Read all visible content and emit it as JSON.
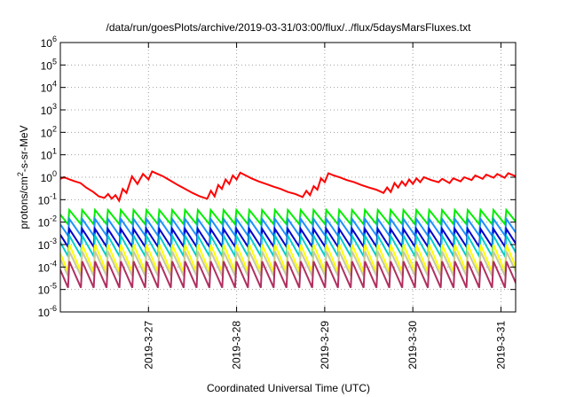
{
  "chart_data": {
    "type": "line",
    "title": "/data/run/goesPlots/archive/2019-03-31/03:00/flux/../flux/5daysMarsFluxes.txt",
    "xlabel": "Coordinated Universal Time (UTC)",
    "ylabel": "protons/cm²-s-sr-MeV",
    "ylabel_parts": {
      "base": "protons/cm",
      "sup": "2",
      "rest": "-s-sr-MeV"
    },
    "yscale": "log",
    "ylim": [
      1e-06,
      1000000.0
    ],
    "xlim": [
      "2019-03-26 00:00",
      "2019-03-31 04:00"
    ],
    "grid": true,
    "yticks": [
      {
        "base": "10",
        "exp": "6",
        "value": 1000000.0
      },
      {
        "base": "10",
        "exp": "5",
        "value": 100000.0
      },
      {
        "base": "10",
        "exp": "4",
        "value": 10000.0
      },
      {
        "base": "10",
        "exp": "3",
        "value": 1000.0
      },
      {
        "base": "10",
        "exp": "2",
        "value": 100.0
      },
      {
        "base": "10",
        "exp": "1",
        "value": 10.0
      },
      {
        "base": "10",
        "exp": "0",
        "value": 1.0
      },
      {
        "base": "10",
        "exp": "-1",
        "value": 0.1
      },
      {
        "base": "10",
        "exp": "-2",
        "value": 0.01
      },
      {
        "base": "10",
        "exp": "-3",
        "value": 0.001
      },
      {
        "base": "10",
        "exp": "-4",
        "value": 0.0001
      },
      {
        "base": "10",
        "exp": "-5",
        "value": 1e-05
      },
      {
        "base": "10",
        "exp": "-6",
        "value": 1e-06
      }
    ],
    "xticks": [
      {
        "label": "2019-3-27",
        "value": "2019-03-27 00:00"
      },
      {
        "label": "2019-3-28",
        "value": "2019-03-28 00:00"
      },
      {
        "label": "2019-3-29",
        "value": "2019-03-29 00:00"
      },
      {
        "label": "2019-3-30",
        "value": "2019-03-30 00:00"
      },
      {
        "label": "2019-3-31",
        "value": "2019-03-31 00:00"
      }
    ],
    "series": [
      {
        "color": "#ff0000",
        "points": [
          [
            "2019-03-26 00:00",
            0.85
          ],
          [
            "2019-03-26 01:00",
            1.0
          ],
          [
            "2019-03-26 02:30",
            0.8
          ],
          [
            "2019-03-26 04:00",
            0.65
          ],
          [
            "2019-03-26 05:30",
            0.55
          ],
          [
            "2019-03-26 07:00",
            0.35
          ],
          [
            "2019-03-26 09:00",
            0.22
          ],
          [
            "2019-03-26 10:30",
            0.14
          ],
          [
            "2019-03-26 12:00",
            0.12
          ],
          [
            "2019-03-26 13:00",
            0.18
          ],
          [
            "2019-03-26 14:00",
            0.11
          ],
          [
            "2019-03-26 15:00",
            0.16
          ],
          [
            "2019-03-26 16:00",
            0.09
          ],
          [
            "2019-03-26 17:00",
            0.3
          ],
          [
            "2019-03-26 18:00",
            0.2
          ],
          [
            "2019-03-26 19:30",
            1.1
          ],
          [
            "2019-03-26 21:00",
            0.5
          ],
          [
            "2019-03-26 22:30",
            1.4
          ],
          [
            "2019-03-27 00:00",
            0.8
          ],
          [
            "2019-03-27 01:00",
            1.8
          ],
          [
            "2019-03-27 02:30",
            1.4
          ],
          [
            "2019-03-27 04:00",
            1.1
          ],
          [
            "2019-03-27 06:00",
            0.7
          ],
          [
            "2019-03-27 08:00",
            0.45
          ],
          [
            "2019-03-27 10:00",
            0.3
          ],
          [
            "2019-03-27 12:00",
            0.2
          ],
          [
            "2019-03-27 14:00",
            0.14
          ],
          [
            "2019-03-27 16:00",
            0.11
          ],
          [
            "2019-03-27 17:00",
            0.25
          ],
          [
            "2019-03-27 18:00",
            0.14
          ],
          [
            "2019-03-27 19:00",
            0.45
          ],
          [
            "2019-03-27 20:00",
            0.3
          ],
          [
            "2019-03-27 21:00",
            0.8
          ],
          [
            "2019-03-27 22:00",
            0.5
          ],
          [
            "2019-03-27 23:00",
            1.2
          ],
          [
            "2019-03-28 00:00",
            0.8
          ],
          [
            "2019-03-28 01:00",
            1.6
          ],
          [
            "2019-03-28 02:30",
            1.2
          ],
          [
            "2019-03-28 04:00",
            0.9
          ],
          [
            "2019-03-28 06:00",
            0.65
          ],
          [
            "2019-03-28 08:00",
            0.5
          ],
          [
            "2019-03-28 10:00",
            0.38
          ],
          [
            "2019-03-28 12:00",
            0.3
          ],
          [
            "2019-03-28 14:00",
            0.22
          ],
          [
            "2019-03-28 16:00",
            0.18
          ],
          [
            "2019-03-28 18:00",
            0.13
          ],
          [
            "2019-03-28 19:00",
            0.25
          ],
          [
            "2019-03-28 20:00",
            0.16
          ],
          [
            "2019-03-28 21:00",
            0.4
          ],
          [
            "2019-03-28 22:00",
            0.28
          ],
          [
            "2019-03-28 23:00",
            0.9
          ],
          [
            "2019-03-29 00:00",
            0.6
          ],
          [
            "2019-03-29 01:00",
            1.5
          ],
          [
            "2019-03-29 02:30",
            1.2
          ],
          [
            "2019-03-29 04:00",
            1.0
          ],
          [
            "2019-03-29 06:00",
            0.75
          ],
          [
            "2019-03-29 08:00",
            0.6
          ],
          [
            "2019-03-29 10:00",
            0.45
          ],
          [
            "2019-03-29 12:00",
            0.35
          ],
          [
            "2019-03-29 14:00",
            0.28
          ],
          [
            "2019-03-29 16:00",
            0.2
          ],
          [
            "2019-03-29 17:00",
            0.35
          ],
          [
            "2019-03-29 18:00",
            0.22
          ],
          [
            "2019-03-29 19:00",
            0.55
          ],
          [
            "2019-03-29 20:00",
            0.35
          ],
          [
            "2019-03-29 21:00",
            0.65
          ],
          [
            "2019-03-29 22:00",
            0.42
          ],
          [
            "2019-03-29 23:00",
            0.8
          ],
          [
            "2019-03-30 00:00",
            0.5
          ],
          [
            "2019-03-30 01:00",
            0.9
          ],
          [
            "2019-03-30 02:00",
            0.6
          ],
          [
            "2019-03-30 03:00",
            1.0
          ],
          [
            "2019-03-30 05:00",
            0.75
          ],
          [
            "2019-03-30 07:00",
            0.6
          ],
          [
            "2019-03-30 08:00",
            0.85
          ],
          [
            "2019-03-30 10:00",
            0.55
          ],
          [
            "2019-03-30 11:00",
            0.9
          ],
          [
            "2019-03-30 13:00",
            0.65
          ],
          [
            "2019-03-30 14:00",
            1.0
          ],
          [
            "2019-03-30 16:00",
            0.75
          ],
          [
            "2019-03-30 17:00",
            1.2
          ],
          [
            "2019-03-30 19:00",
            0.85
          ],
          [
            "2019-03-30 20:00",
            1.3
          ],
          [
            "2019-03-30 22:00",
            0.95
          ],
          [
            "2019-03-30 23:00",
            1.4
          ],
          [
            "2019-03-31 01:00",
            0.95
          ],
          [
            "2019-03-31 02:00",
            1.5
          ],
          [
            "2019-03-31 04:00",
            1.1
          ]
        ]
      },
      {
        "color": "#00ee00",
        "sawtooth": {
          "peak": 0.035,
          "trough": 0.008,
          "period_hours": 3.5
        }
      },
      {
        "color": "#1e90ff",
        "sawtooth": {
          "peak": 0.014,
          "trough": 0.0025,
          "period_hours": 3.5
        }
      },
      {
        "color": "#0000cd",
        "sawtooth": {
          "peak": 0.005,
          "trough": 0.0008,
          "period_hours": 3.5
        }
      },
      {
        "color": "#00cccc",
        "sawtooth": {
          "peak": 0.0025,
          "trough": 0.0003,
          "period_hours": 3.5
        }
      },
      {
        "color": "#ffff00",
        "sawtooth": {
          "peak": 0.001,
          "trough": 6e-05,
          "period_hours": 3.5
        }
      },
      {
        "color": "#c8c8a0",
        "sawtooth": {
          "peak": 0.0005,
          "trough": 4e-05,
          "period_hours": 3.5
        }
      },
      {
        "color": "#b03060",
        "sawtooth": {
          "peak": 0.00018,
          "trough": 1.2e-05,
          "period_hours": 3.5
        }
      }
    ]
  }
}
